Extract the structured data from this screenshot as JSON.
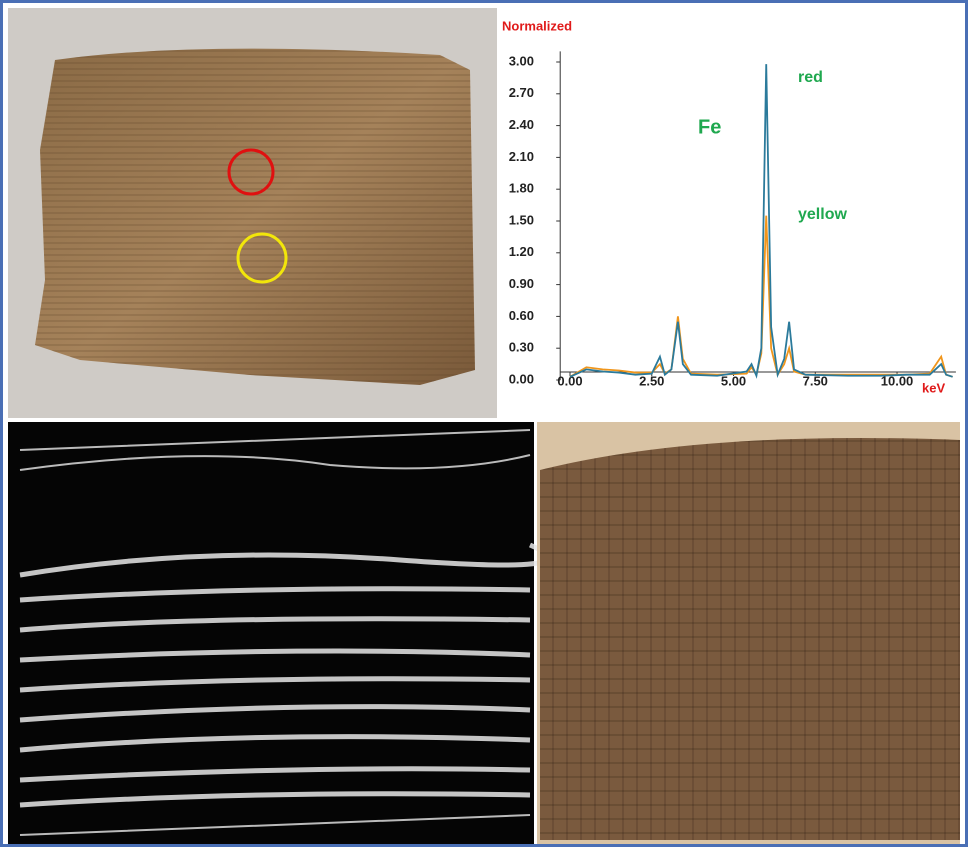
{
  "chart_data": {
    "type": "line",
    "title": "Normalized",
    "x_label": "keV",
    "annotations": [
      "Fe",
      "red",
      "yellow"
    ],
    "x": [
      0.0,
      0.5,
      1.0,
      1.5,
      2.0,
      2.5,
      2.75,
      2.9,
      3.1,
      3.3,
      3.45,
      3.7,
      4.5,
      5.4,
      5.55,
      5.7,
      5.85,
      6.0,
      6.15,
      6.35,
      6.55,
      6.7,
      6.85,
      7.2,
      8.5,
      9.5,
      10.3,
      11.0,
      11.35,
      11.5,
      11.7
    ],
    "series": [
      {
        "name": "red",
        "color": "#2b7a9b",
        "values": [
          0.03,
          0.1,
          0.08,
          0.07,
          0.05,
          0.06,
          0.22,
          0.05,
          0.1,
          0.55,
          0.15,
          0.05,
          0.04,
          0.08,
          0.15,
          0.04,
          0.3,
          2.98,
          0.5,
          0.05,
          0.2,
          0.55,
          0.1,
          0.05,
          0.04,
          0.04,
          0.05,
          0.05,
          0.15,
          0.05,
          0.03
        ]
      },
      {
        "name": "yellow",
        "color": "#f0961c",
        "values": [
          0.03,
          0.12,
          0.1,
          0.09,
          0.07,
          0.07,
          0.15,
          0.06,
          0.1,
          0.6,
          0.2,
          0.06,
          0.05,
          0.06,
          0.12,
          0.05,
          0.25,
          1.55,
          0.3,
          0.05,
          0.15,
          0.3,
          0.08,
          0.05,
          0.05,
          0.05,
          0.05,
          0.06,
          0.22,
          0.05,
          0.03
        ]
      }
    ],
    "xlim": [
      -0.3,
      11.8
    ],
    "ylim": [
      0,
      3.1
    ],
    "xticks": [
      {
        "value": 0,
        "label": "0.00"
      },
      {
        "value": 2.5,
        "label": "2.50"
      },
      {
        "value": 5,
        "label": "5.00"
      },
      {
        "value": 7.5,
        "label": "7.50"
      },
      {
        "value": 10,
        "label": "10.00"
      }
    ],
    "yticks": [
      {
        "value": 0,
        "label": "0.00"
      },
      {
        "value": 0.3,
        "label": "0.30"
      },
      {
        "value": 0.6,
        "label": "0.60"
      },
      {
        "value": 0.9,
        "label": "0.90"
      },
      {
        "value": 1.2,
        "label": "1.20"
      },
      {
        "value": 1.5,
        "label": "1.50"
      },
      {
        "value": 1.8,
        "label": "1.80"
      },
      {
        "value": 2.1,
        "label": "2.10"
      },
      {
        "value": 2.4,
        "label": "2.40"
      },
      {
        "value": 2.7,
        "label": "2.70"
      },
      {
        "value": 3.0,
        "label": "3.00"
      }
    ]
  }
}
